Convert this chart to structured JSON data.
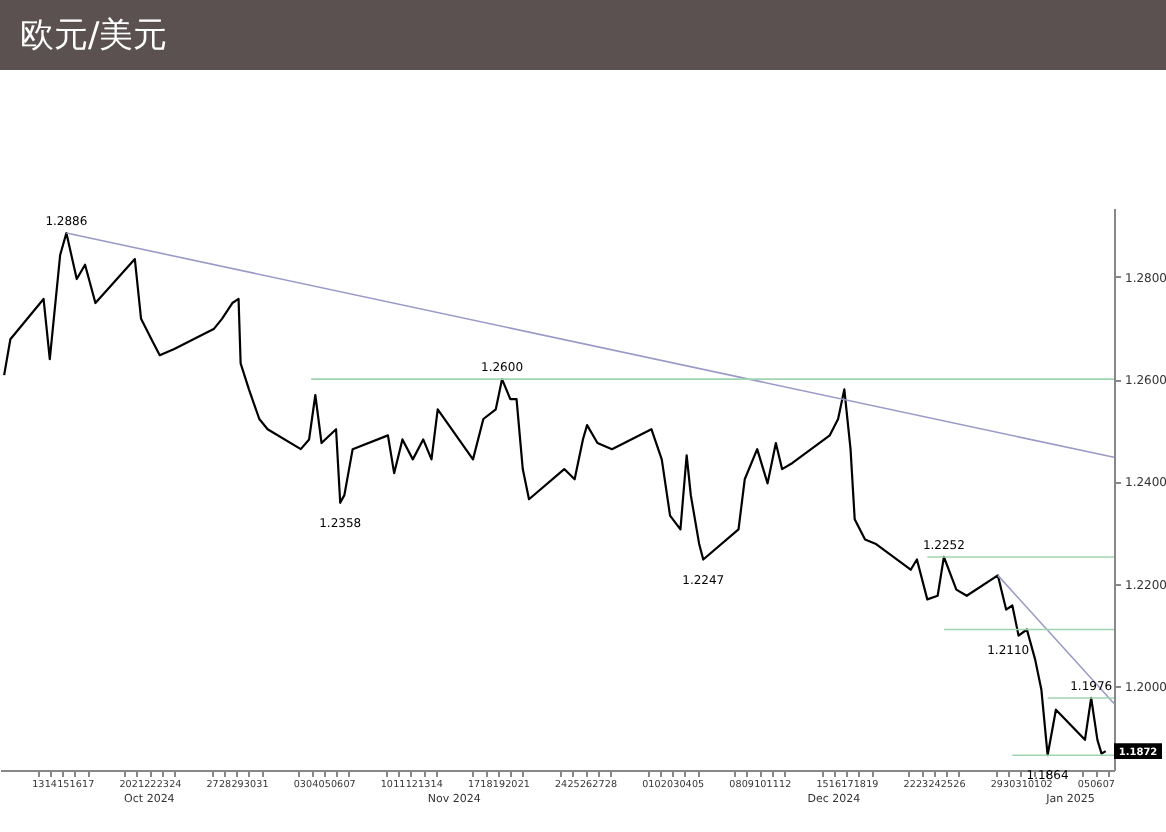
{
  "chart_data": {
    "type": "line",
    "title": "欧元/美元",
    "legend": false,
    "grid": false,
    "marker": "none",
    "line_style": "solid",
    "xlim": [
      "2024-10-10T00:00",
      "2025-01-07T12:00"
    ],
    "xticks": [
      {
        "value": "2024-10-13",
        "label": "13"
      },
      {
        "value": "2024-10-14",
        "label": "14"
      },
      {
        "value": "2024-10-15",
        "label": "15"
      },
      {
        "value": "2024-10-16",
        "label": "16"
      },
      {
        "value": "2024-10-17",
        "label": "17"
      },
      {
        "value": "2024-10-20",
        "label": "20"
      },
      {
        "value": "2024-10-21",
        "label": "21"
      },
      {
        "value": "2024-10-22",
        "label": "22"
      },
      {
        "value": "2024-10-23",
        "label": "23"
      },
      {
        "value": "2024-10-24",
        "label": "24"
      },
      {
        "value": "2024-10-27",
        "label": "27"
      },
      {
        "value": "2024-10-28",
        "label": "28"
      },
      {
        "value": "2024-10-29",
        "label": "29"
      },
      {
        "value": "2024-10-30",
        "label": "30"
      },
      {
        "value": "2024-10-31",
        "label": "31"
      },
      {
        "value": "2024-11-03",
        "label": "03"
      },
      {
        "value": "2024-11-04",
        "label": "04"
      },
      {
        "value": "2024-11-05",
        "label": "05"
      },
      {
        "value": "2024-11-06",
        "label": "06"
      },
      {
        "value": "2024-11-07",
        "label": "07"
      },
      {
        "value": "2024-11-10",
        "label": "10"
      },
      {
        "value": "2024-11-11",
        "label": "11"
      },
      {
        "value": "2024-11-12",
        "label": "12"
      },
      {
        "value": "2024-11-13",
        "label": "13"
      },
      {
        "value": "2024-11-14",
        "label": "14"
      },
      {
        "value": "2024-11-17",
        "label": "17"
      },
      {
        "value": "2024-11-18",
        "label": "18"
      },
      {
        "value": "2024-11-19",
        "label": "19"
      },
      {
        "value": "2024-11-20",
        "label": "20"
      },
      {
        "value": "2024-11-21",
        "label": "21"
      },
      {
        "value": "2024-11-24",
        "label": "24"
      },
      {
        "value": "2024-11-25",
        "label": "25"
      },
      {
        "value": "2024-11-26",
        "label": "26"
      },
      {
        "value": "2024-11-27",
        "label": "27"
      },
      {
        "value": "2024-11-28",
        "label": "28"
      },
      {
        "value": "2024-12-01",
        "label": "01"
      },
      {
        "value": "2024-12-02",
        "label": "02"
      },
      {
        "value": "2024-12-03",
        "label": "03"
      },
      {
        "value": "2024-12-04",
        "label": "04"
      },
      {
        "value": "2024-12-05",
        "label": "05"
      },
      {
        "value": "2024-12-08",
        "label": "08"
      },
      {
        "value": "2024-12-09",
        "label": "09"
      },
      {
        "value": "2024-12-10",
        "label": "10"
      },
      {
        "value": "2024-12-11",
        "label": "11"
      },
      {
        "value": "2024-12-12",
        "label": "12"
      },
      {
        "value": "2024-12-15",
        "label": "15"
      },
      {
        "value": "2024-12-16",
        "label": "16"
      },
      {
        "value": "2024-12-17",
        "label": "17"
      },
      {
        "value": "2024-12-18",
        "label": "18"
      },
      {
        "value": "2024-12-19",
        "label": "19"
      },
      {
        "value": "2024-12-22",
        "label": "22"
      },
      {
        "value": "2024-12-23",
        "label": "23"
      },
      {
        "value": "2024-12-24",
        "label": "24"
      },
      {
        "value": "2024-12-25",
        "label": "25"
      },
      {
        "value": "2024-12-26",
        "label": "26"
      },
      {
        "value": "2024-12-29",
        "label": "29"
      },
      {
        "value": "2024-12-30",
        "label": "30"
      },
      {
        "value": "2024-12-31",
        "label": "31"
      },
      {
        "value": "2025-01-01",
        "label": "01"
      },
      {
        "value": "2025-01-02",
        "label": "02"
      },
      {
        "value": "2025-01-05",
        "label": "05"
      },
      {
        "value": "2025-01-06",
        "label": "06"
      },
      {
        "value": "2025-01-07",
        "label": "07"
      }
    ],
    "ylim": [
      1.1835,
      1.2935
    ],
    "yticks": [
      {
        "value": 1.2,
        "label": "1.2000"
      },
      {
        "value": 1.22,
        "label": "1.2200"
      },
      {
        "value": 1.24,
        "label": "1.2400"
      },
      {
        "value": 1.26,
        "label": "1.2600"
      },
      {
        "value": 1.28,
        "label": "1.2800"
      }
    ],
    "series": [
      {
        "color": "#000000",
        "x": [
          "2024-10-10T08:00",
          "2024-10-10T20:00",
          "2024-10-13T12:00",
          "2024-10-14T00:00",
          "2024-10-14T20:00",
          "2024-10-15T08:00",
          "2024-10-16T04:00",
          "2024-10-16T20:00",
          "2024-10-17T16:00",
          "2024-10-20T20:00",
          "2024-10-21T08:00",
          "2024-10-22T04:00",
          "2024-10-22T20:00",
          "2024-10-24T00:00",
          "2024-10-27T04:00",
          "2024-10-27T20:00",
          "2024-10-28T16:00",
          "2024-10-29T04:00",
          "2024-10-29T08:00",
          "2024-10-30T00:00",
          "2024-10-30T20:00",
          "2024-10-31T12:00",
          "2024-11-03T04:00",
          "2024-11-03T20:00",
          "2024-11-04T08:00",
          "2024-11-04T20:00",
          "2024-11-06T00:00",
          "2024-11-06T08:00",
          "2024-11-06T16:00",
          "2024-11-07T08:00",
          "2024-11-10T04:00",
          "2024-11-10T16:00",
          "2024-11-11T08:00",
          "2024-11-12T04:00",
          "2024-11-13T00:00",
          "2024-11-13T16:00",
          "2024-11-14T04:00",
          "2024-11-17T00:00",
          "2024-11-17T20:00",
          "2024-11-18T20:00",
          "2024-11-19T08:00",
          "2024-11-20T00:00",
          "2024-11-20T12:00",
          "2024-11-21T00:00",
          "2024-11-21T12:00",
          "2024-11-24T08:00",
          "2024-11-25T04:00",
          "2024-11-25T20:00",
          "2024-11-26T04:00",
          "2024-11-27T00:00",
          "2024-11-28T04:00",
          "2024-12-01T08:00",
          "2024-12-02T04:00",
          "2024-12-02T20:00",
          "2024-12-03T16:00",
          "2024-12-04T04:00",
          "2024-12-04T12:00",
          "2024-12-05T04:00",
          "2024-12-05T12:00",
          "2024-12-08T08:00",
          "2024-12-08T20:00",
          "2024-12-09T20:00",
          "2024-12-10T16:00",
          "2024-12-11T08:00",
          "2024-12-11T20:00",
          "2024-12-12T16:00",
          "2024-12-15T16:00",
          "2024-12-16T08:00",
          "2024-12-16T20:00",
          "2024-12-17T08:00",
          "2024-12-17T16:00",
          "2024-12-18T12:00",
          "2024-12-19T08:00",
          "2024-12-22T04:00",
          "2024-12-22T16:00",
          "2024-12-23T12:00",
          "2024-12-24T08:00",
          "2024-12-24T20:00",
          "2024-12-25T20:00",
          "2024-12-26T16:00",
          "2024-12-29T04:00",
          "2024-12-29T20:00",
          "2024-12-30T08:00",
          "2024-12-30T20:00",
          "2024-12-31T12:00",
          "2025-01-01T04:00",
          "2025-01-01T16:00",
          "2025-01-02T04:00",
          "2025-01-02T20:00",
          "2025-01-05T04:00",
          "2025-01-05T16:00",
          "2025-01-06T04:00",
          "2025-01-06T12:00",
          "2025-01-06T20:00"
        ],
        "values": [
          1.2608,
          1.2678,
          1.2757,
          1.2639,
          1.2843,
          1.2886,
          1.2796,
          1.2824,
          1.2749,
          1.2835,
          1.2718,
          1.2678,
          1.2647,
          1.2659,
          1.2698,
          1.2718,
          1.2749,
          1.2757,
          1.2631,
          1.258,
          1.2522,
          1.2502,
          1.2463,
          1.2482,
          1.2569,
          1.2475,
          1.2502,
          1.2358,
          1.2373,
          1.2463,
          1.249,
          1.2416,
          1.2482,
          1.2443,
          1.2482,
          1.2443,
          1.2541,
          1.2443,
          1.2522,
          1.2541,
          1.26,
          1.2561,
          1.2561,
          1.2424,
          1.2365,
          1.2424,
          1.2404,
          1.2482,
          1.251,
          1.2475,
          1.2463,
          1.2502,
          1.2443,
          1.2333,
          1.2306,
          1.2451,
          1.2373,
          1.2278,
          1.2247,
          1.2306,
          1.2404,
          1.2463,
          1.2396,
          1.2475,
          1.2424,
          1.2436,
          1.249,
          1.2522,
          1.258,
          1.2463,
          1.2326,
          1.2286,
          1.2278,
          1.2227,
          1.2247,
          1.2169,
          1.2176,
          1.2252,
          1.2188,
          1.2176,
          1.2216,
          1.2149,
          1.2157,
          1.2098,
          1.211,
          1.2051,
          1.1992,
          1.1864,
          1.1953,
          1.1894,
          1.1976,
          1.1894,
          1.1867,
          1.1872
        ]
      },
      {
        "color": "#9a9ac8",
        "x": [
          "2024-10-15T08:00",
          "2025-01-07T12:00"
        ],
        "values": [
          1.2886,
          1.2447
        ]
      },
      {
        "color": "#9a9ac8",
        "x": [
          "2024-12-29T04:00",
          "2025-01-07T12:00"
        ],
        "values": [
          1.2216,
          1.1965
        ]
      },
      {
        "color": "#9fd4b0",
        "x": [
          "2024-11-04T00:00",
          "2025-01-07T12:00"
        ],
        "values": [
          1.26,
          1.26
        ]
      },
      {
        "color": "#9fd4b0",
        "x": [
          "2024-12-23T12:00",
          "2025-01-07T12:00"
        ],
        "values": [
          1.2252,
          1.2252
        ]
      },
      {
        "color": "#9fd4b0",
        "x": [
          "2024-12-24T20:00",
          "2025-01-07T12:00"
        ],
        "values": [
          1.211,
          1.211
        ]
      },
      {
        "color": "#9fd4b0",
        "x": [
          "2025-01-02T04:00",
          "2025-01-07T12:00"
        ],
        "values": [
          1.1976,
          1.1976
        ]
      },
      {
        "color": "#9fd4b0",
        "x": [
          "2024-12-30T08:00",
          "2025-01-07T12:00"
        ],
        "values": [
          1.1864,
          1.1864
        ]
      }
    ],
    "annotations": [
      {
        "text": "1.2886",
        "x": "2024-10-15T08:00",
        "y": 1.2886
      },
      {
        "text": "1.2600",
        "x": "2024-11-19T08:00",
        "y": 1.26
      },
      {
        "text": "1.2358",
        "x": "2024-11-06T08:00",
        "y": 1.2358
      },
      {
        "text": "1.2247",
        "x": "2024-12-05T12:00",
        "y": 1.2247
      },
      {
        "text": "1.2252",
        "x": "2024-12-24T20:00",
        "y": 1.2252
      },
      {
        "text": "1.2110",
        "x": "2024-12-30T00:00",
        "y": 1.211
      },
      {
        "text": "1.1976",
        "x": "2025-01-05T16:00",
        "y": 1.1976
      },
      {
        "text": "1.1864",
        "x": "2025-01-02T04:00",
        "y": 1.1864
      },
      {
        "text": "1.1872",
        "y": 1.1872
      },
      "Oct 2024",
      "Nov 2024",
      "Dec 2024",
      "Jan 2025"
    ]
  }
}
